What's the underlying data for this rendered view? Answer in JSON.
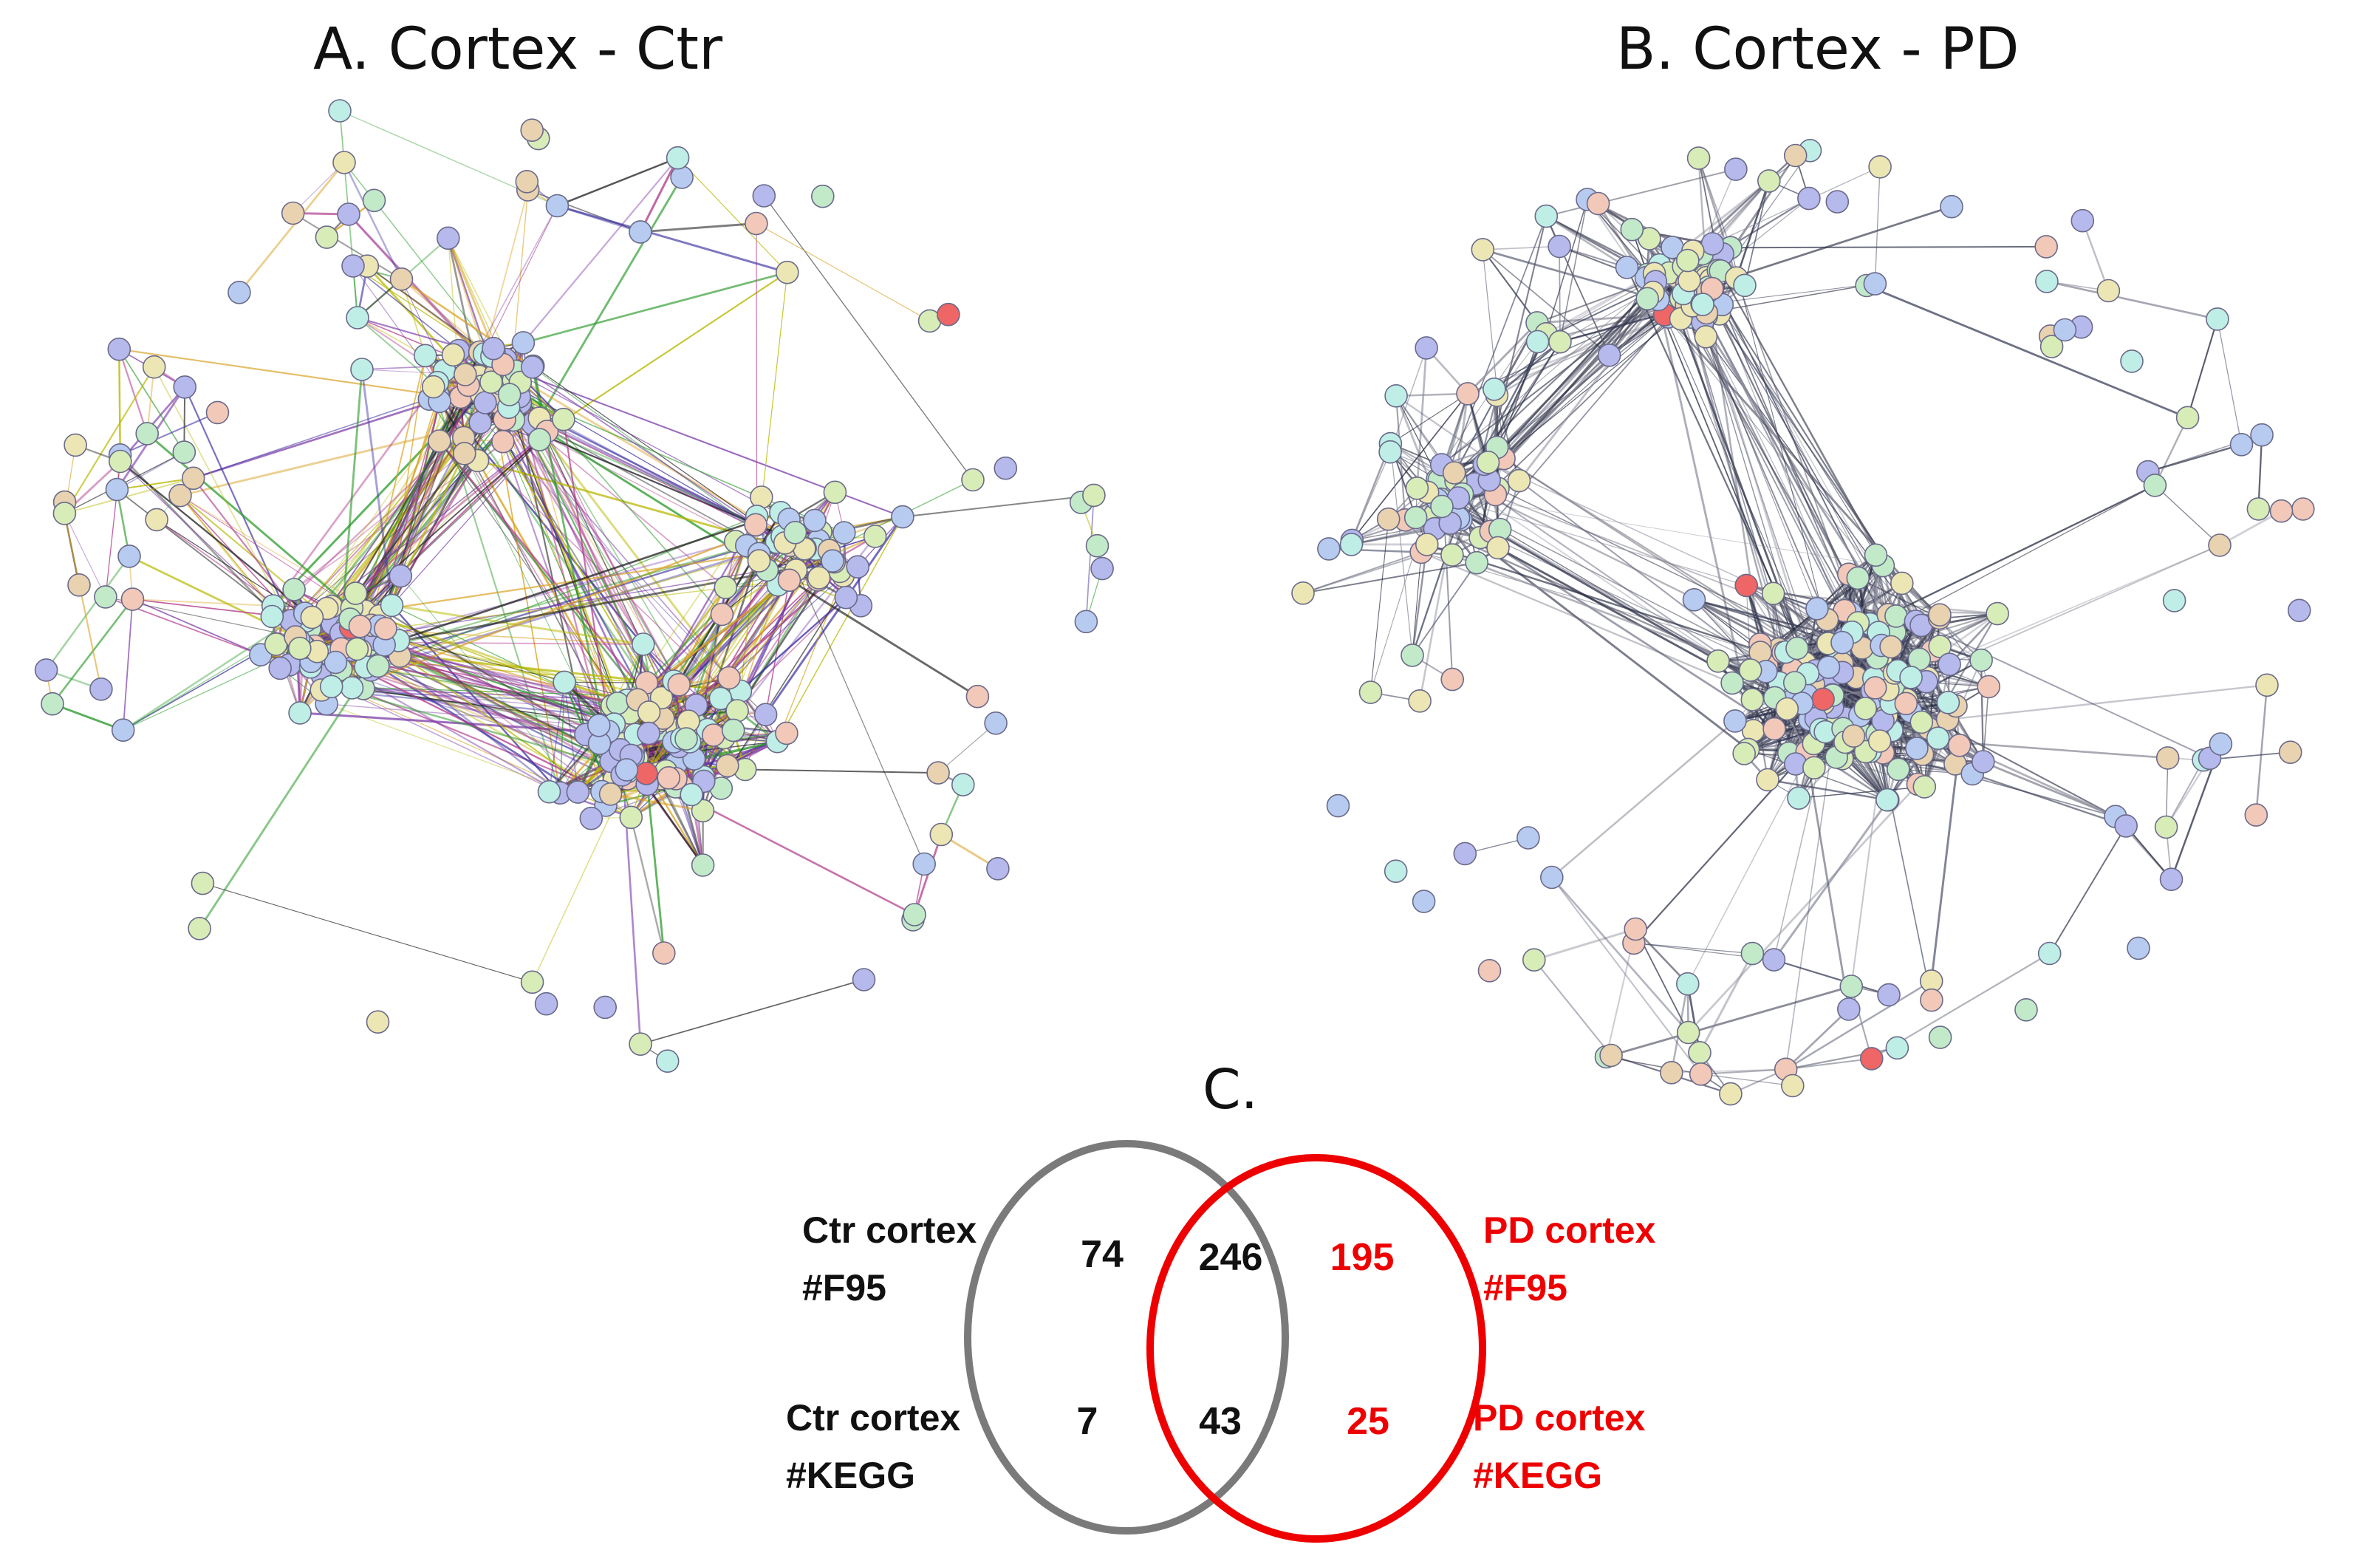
{
  "panels": {
    "a_title": "A. Cortex - Ctr",
    "b_title": "B. Cortex - PD",
    "c_title": "C."
  },
  "colors": {
    "ctr": "#7a7a7a",
    "pd": "#ee0000",
    "text": "#111111",
    "node_palette": [
      "#b7cbf0",
      "#c2eac9",
      "#ece6b4",
      "#f2c8b8",
      "#b6b9ec",
      "#bfeee6",
      "#d8ecb8",
      "#e8d2b0"
    ]
  },
  "venn": {
    "labels": {
      "ctr_f95_line1": "Ctr cortex",
      "ctr_f95_line2": "#F95",
      "ctr_kegg_line1": "Ctr cortex",
      "ctr_kegg_line2": "#KEGG",
      "pd_f95_line1": "PD cortex",
      "pd_f95_line2": "#F95",
      "pd_kegg_line1": "PD cortex",
      "pd_kegg_line2": "#KEGG"
    },
    "counts": {
      "f95_ctr_only": "74",
      "f95_shared": "246",
      "f95_pd_only": "195",
      "kegg_ctr_only": "7",
      "kegg_shared": "43",
      "kegg_pd_only": "25"
    }
  }
}
